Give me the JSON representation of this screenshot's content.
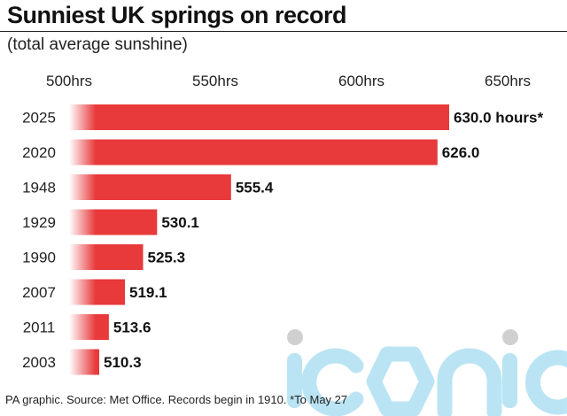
{
  "header": {
    "title": "Sunniest UK springs on record",
    "subtitle": "(total average sunshine)"
  },
  "footer": {
    "note": "PA graphic. Source: Met Office. Records begin in 1910. *To May 27"
  },
  "watermark": {
    "text": "iconic",
    "color": "#aee0f2"
  },
  "chart_data": {
    "type": "bar",
    "orientation": "horizontal",
    "categories": [
      "2025",
      "2020",
      "1948",
      "1929",
      "1990",
      "2007",
      "2011",
      "2003"
    ],
    "values": [
      630.0,
      626.0,
      555.4,
      530.1,
      525.3,
      519.1,
      513.6,
      510.3
    ],
    "data_labels": [
      "630.0 hours*",
      "626.0",
      "555.4",
      "530.1",
      "525.3",
      "519.1",
      "513.6",
      "510.3"
    ],
    "x_ticks": [
      500,
      550,
      600,
      650
    ],
    "x_tick_labels": [
      "500hrs",
      "550hrs",
      "600hrs",
      "650hrs"
    ],
    "xlim": [
      500,
      660
    ],
    "grid": false,
    "legend": "none",
    "bar_color": "#e8393b"
  }
}
